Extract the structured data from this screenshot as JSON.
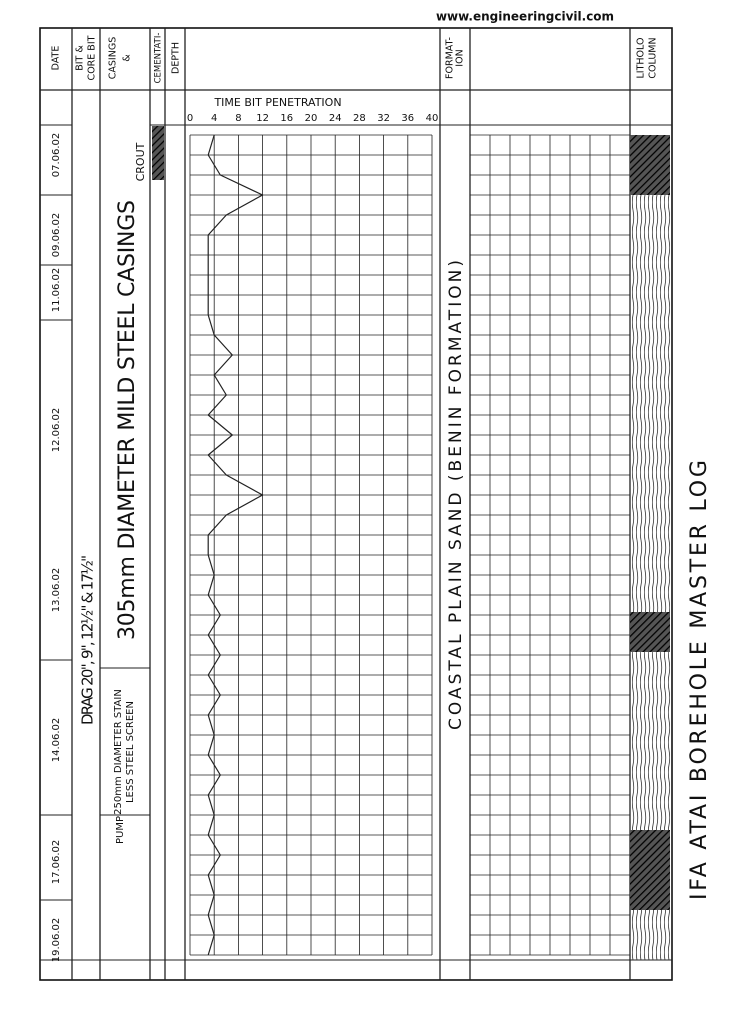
{
  "watermark": "www.engineeringcivil.com",
  "title": "IFA ATAI BOREHOLE MASTER LOG",
  "headers": {
    "date": [
      "DATE"
    ],
    "bit": [
      "BIT &",
      "CORE BIT"
    ],
    "casings": [
      "CASINGS",
      "&"
    ],
    "cementation": [
      "CEMENTATI-"
    ],
    "depth": [
      "DEPTH"
    ],
    "formation": [
      "FORMAT-",
      "ION"
    ],
    "lithology": [
      "LITHOLO",
      "COLUMN"
    ]
  },
  "dates": [
    "07.06.02",
    "09.06.02",
    "11.06.02",
    "12.06.02",
    "13.06.02",
    "14.06.02",
    "17.06.02",
    "19.06.02"
  ],
  "bits": "DRAG 20\", 9\", 12½\" & 17½\"",
  "casing": "305mm DIAMETER MILD STEEL CASINGS",
  "screen": [
    "250mm DIAMETER STAIN",
    "LESS STEEL SCREEN"
  ],
  "cementation": "CROUT",
  "pump": "PUMP",
  "formation": "COASTAL PLAIN SAND   (BENIN  FORMATION)",
  "chart_data": {
    "type": "line",
    "title": "TIME BIT PENETRATION",
    "xlim": [
      0,
      40
    ],
    "xticks": [
      0,
      4,
      8,
      12,
      16,
      20,
      24,
      28,
      32,
      36,
      40
    ],
    "grid": true,
    "color": "#222222",
    "values": [
      4,
      3,
      5,
      12,
      6,
      3,
      3,
      3,
      3,
      3,
      4,
      7,
      4,
      6,
      3,
      7,
      3,
      6,
      12,
      6,
      3,
      3,
      4,
      3,
      5,
      3,
      5,
      3,
      5,
      3,
      4,
      3,
      5,
      3,
      4,
      3,
      5,
      3,
      4,
      3,
      4,
      3
    ]
  }
}
